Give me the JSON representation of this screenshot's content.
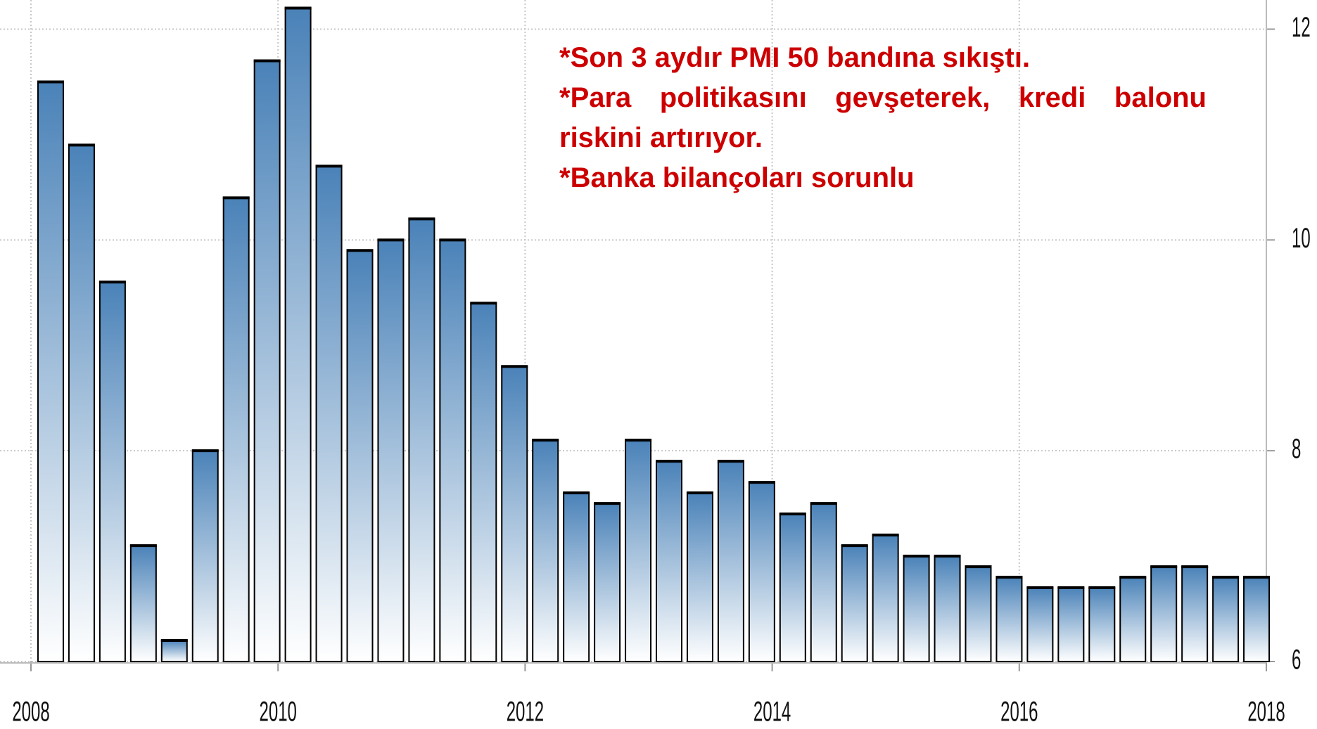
{
  "chart_data": {
    "type": "bar",
    "categories": [
      null,
      null,
      null,
      null,
      null,
      null,
      null,
      null,
      null,
      null,
      null,
      null,
      null,
      null,
      null,
      null,
      null,
      null,
      null,
      null,
      null,
      null,
      null,
      null,
      null,
      null,
      null,
      null,
      null,
      null,
      null,
      null,
      null,
      null,
      null,
      null,
      null,
      null,
      null,
      null
    ],
    "values": [
      11.5,
      10.9,
      9.6,
      7.1,
      6.2,
      8.0,
      10.4,
      11.7,
      12.2,
      10.7,
      9.9,
      10.0,
      10.2,
      10.0,
      9.4,
      8.8,
      8.1,
      7.6,
      7.5,
      8.1,
      7.9,
      7.6,
      7.9,
      7.7,
      7.4,
      7.5,
      7.1,
      7.2,
      7.0,
      7.0,
      6.9,
      6.8,
      6.7,
      6.7,
      6.7,
      6.8,
      6.9,
      6.9,
      6.8,
      6.8
    ],
    "color": "#4a82b8",
    "ylim": [
      6,
      12.25
    ],
    "yticks": [
      6,
      8,
      10,
      12
    ],
    "xlim": [
      2008,
      2018
    ],
    "xticks": [
      2008,
      2010,
      2012,
      2014,
      2016,
      2018
    ],
    "grid": true,
    "annotations": [
      "*Son 3 aydır PMI 50 bandına sıkıştı.",
      "*Para politikasını gevşeterek, kredi balonu riskini artırıyor.",
      "*Banka bilançoları sorunlu"
    ],
    "annotation_color": "#cc0000"
  }
}
